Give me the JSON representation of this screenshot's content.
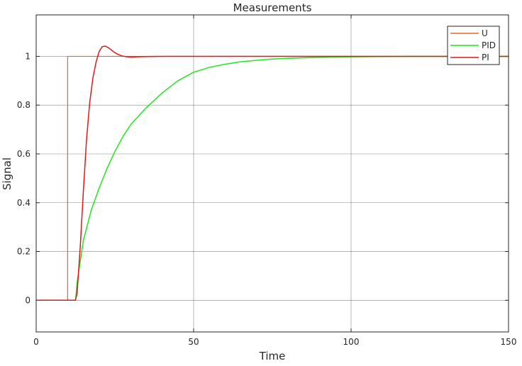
{
  "chart_data": {
    "type": "line",
    "title": "Measurements",
    "xlabel": "Time",
    "ylabel": "Signal",
    "xlim": [
      0,
      150
    ],
    "ylim": [
      -0.13,
      1.17
    ],
    "xticks": [
      0,
      50,
      100,
      150
    ],
    "yticks": [
      0,
      0.2,
      0.4,
      0.6,
      0.8,
      1
    ],
    "xtick_labels": [
      "0",
      "50",
      "100",
      "150"
    ],
    "ytick_labels": [
      "0",
      "0.2",
      "0.4",
      "0.6",
      "0.8",
      "1"
    ],
    "grid": true,
    "legend_position": "top-right",
    "series": [
      {
        "name": "U",
        "color": "#e8691d",
        "x": [
          0,
          10,
          10,
          150
        ],
        "y": [
          0,
          0,
          1,
          1
        ]
      },
      {
        "name": "PID",
        "color": "#22e622",
        "x": [
          0,
          12.5,
          13,
          15,
          17.5,
          20,
          22.5,
          25,
          27.5,
          30,
          35,
          40,
          45,
          50,
          55,
          60,
          65,
          70,
          75,
          80,
          85,
          90,
          95,
          100,
          110,
          120,
          130,
          140,
          150
        ],
        "y": [
          0,
          0,
          0.073,
          0.246,
          0.37,
          0.46,
          0.54,
          0.61,
          0.67,
          0.72,
          0.79,
          0.85,
          0.9,
          0.935,
          0.955,
          0.968,
          0.978,
          0.984,
          0.989,
          0.992,
          0.994,
          0.996,
          0.997,
          0.998,
          0.999,
          1,
          1,
          1,
          1
        ]
      },
      {
        "name": "PI",
        "color": "#e01919",
        "x": [
          0,
          12.5,
          13,
          14,
          15,
          16,
          17,
          18,
          19,
          20,
          21,
          22,
          23,
          24,
          25,
          26,
          27,
          28,
          29,
          30,
          32,
          35,
          40,
          50,
          150
        ],
        "y": [
          0,
          0,
          0.03,
          0.22,
          0.45,
          0.66,
          0.81,
          0.91,
          0.975,
          1.02,
          1.04,
          1.042,
          1.035,
          1.025,
          1.015,
          1.008,
          1.003,
          1.0,
          0.998,
          0.997,
          0.998,
          0.999,
          1,
          1,
          1
        ]
      }
    ]
  }
}
